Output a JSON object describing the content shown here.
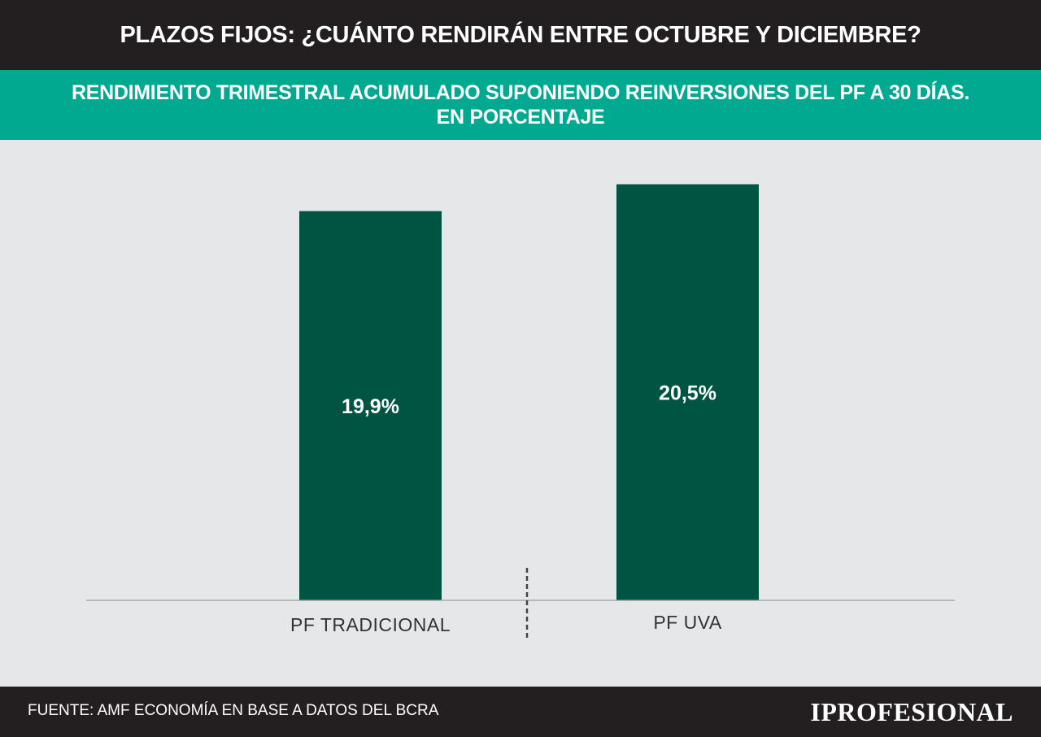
{
  "header": {
    "title": "PLAZOS FIJOS: ¿CUÁNTO RENDIRÁN ENTRE OCTUBRE Y DICIEMBRE?"
  },
  "subheader": {
    "line1": "RENDIMIENTO TRIMESTRAL ACUMULADO SUPONIENDO REINVERSIONES DEL PF A 30 DÍAS.",
    "line2": "EN PORCENTAJE"
  },
  "chart_data": {
    "type": "bar",
    "categories": [
      "PF TRADICIONAL",
      "PF UVA"
    ],
    "values": [
      19.9,
      20.5
    ],
    "data_labels": [
      "19,9%",
      "20,5%"
    ],
    "ylim": [
      11.2,
      21.2
    ],
    "grid": false,
    "legend": "none",
    "bar_color": "#005442"
  },
  "footer": {
    "source": "FUENTE: AMF ECONOMÍA EN BASE A DATOS DEL BCRA",
    "brand": "IPROFESIONAL"
  },
  "colors": {
    "header_bg": "#231f20",
    "subheader_bg": "#00a98f",
    "chart_bg": "#e6e7e9",
    "bar": "#005442",
    "axis": "#9b9b9b",
    "label_text": "#333333"
  }
}
